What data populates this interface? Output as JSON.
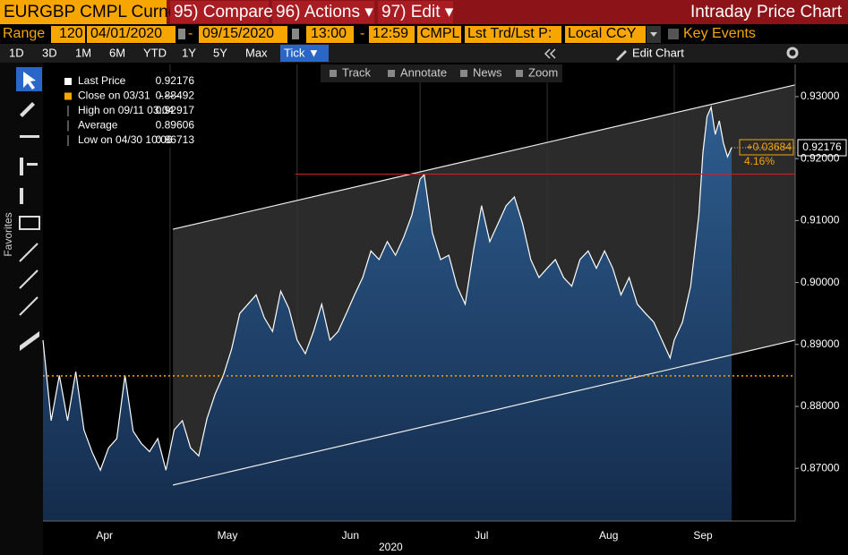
{
  "header": {
    "security": "EURGBP CMPL Curnc",
    "compare": "95) Compare",
    "actions": "96) Actions ▾",
    "edit": "97) Edit ▾",
    "title": "Intraday Price Chart"
  },
  "range_bar": {
    "range": "Range",
    "period": "120",
    "start_date": "04/01/2020",
    "dash1": "-",
    "end_date": "09/15/2020",
    "start_time": "13:00",
    "dash2": "-",
    "end_time": "12:59",
    "source": "CMPL",
    "field": "Lst Trd/Lst P:",
    "currency": "Local CCY",
    "key_events": "Key Events"
  },
  "periods": [
    "1D",
    "3D",
    "1M",
    "6M",
    "YTD",
    "1Y",
    "5Y",
    "Max"
  ],
  "frequency": "Tick ▼",
  "edit_chart": "Edit Chart",
  "chart_tools": [
    "Track",
    "Annotate",
    "News",
    "Zoom"
  ],
  "favorites": "Favorites",
  "legend": [
    {
      "label": "Last Price",
      "value": 0.92176
    },
    {
      "label": "Close on 03/31",
      "value": 0.88492
    },
    {
      "label": "High on 09/11 03:04",
      "value": 0.92917
    },
    {
      "label": "Average",
      "value": 0.89606
    },
    {
      "label": "Low on 04/30 10:06",
      "value": 0.86713
    }
  ],
  "chart_data": {
    "type": "line",
    "x": [
      0,
      2,
      4,
      6,
      8,
      10,
      12,
      14,
      16,
      18,
      20,
      22,
      24,
      26,
      28,
      30,
      32,
      34,
      36,
      38,
      40,
      42,
      44,
      46,
      48,
      50,
      52,
      54,
      56,
      58,
      60,
      62,
      64,
      66,
      68,
      70,
      72,
      74,
      76,
      78,
      80,
      82,
      84,
      86,
      88,
      90,
      92,
      93,
      95,
      97,
      99,
      101,
      103,
      105,
      107,
      109,
      111,
      113,
      115,
      117,
      119,
      121,
      123,
      125,
      127,
      129,
      131,
      133,
      135,
      137,
      139,
      141,
      143,
      145,
      147,
      149,
      151,
      153,
      154,
      156,
      158,
      159,
      160,
      161,
      162,
      163,
      164,
      165,
      166,
      167,
      168
    ],
    "series": [
      {
        "name": "Last Price",
        "color": "#ffffff",
        "values": [
          0.8907,
          0.8777,
          0.885,
          0.8777,
          0.8856,
          0.8762,
          0.8726,
          0.8697,
          0.8733,
          0.8748,
          0.885,
          0.876,
          0.874,
          0.8727,
          0.8748,
          0.8697,
          0.8762,
          0.8777,
          0.8733,
          0.872,
          0.878,
          0.882,
          0.885,
          0.8892,
          0.895,
          0.8965,
          0.898,
          0.8943,
          0.8921,
          0.8986,
          0.8958,
          0.8907,
          0.8885,
          0.8921,
          0.8965,
          0.8907,
          0.8921,
          0.895,
          0.898,
          0.9008,
          0.9051,
          0.9037,
          0.9066,
          0.9044,
          0.9073,
          0.9109,
          0.9167,
          0.9174,
          0.908,
          0.9037,
          0.9044,
          0.8994,
          0.8965,
          0.9051,
          0.9124,
          0.9066,
          0.9095,
          0.9124,
          0.9138,
          0.9095,
          0.9037,
          0.9008,
          0.9023,
          0.9037,
          0.9008,
          0.8994,
          0.9037,
          0.9051,
          0.9023,
          0.9051,
          0.9023,
          0.898,
          0.9008,
          0.8965,
          0.895,
          0.8936,
          0.8907,
          0.8878,
          0.8907,
          0.8936,
          0.8994,
          0.9051,
          0.9109,
          0.921,
          0.9268,
          0.9283,
          0.9239,
          0.9261,
          0.9225,
          0.9203,
          0.9218
        ]
      }
    ],
    "xlim": [
      0,
      183.5
    ],
    "ylim": [
      0.8615,
      0.9352
    ],
    "xticks": [
      {
        "value": 15,
        "label": "Apr"
      },
      {
        "value": 45,
        "label": "May"
      },
      {
        "value": 75,
        "label": "Jun"
      },
      {
        "value": 107,
        "label": "Jul"
      },
      {
        "value": 138,
        "label": "Aug"
      },
      {
        "value": 161,
        "label": "Sep"
      }
    ],
    "xgrid": [
      31,
      62,
      92,
      123,
      154
    ],
    "x_label": "2020",
    "yticks": [
      {
        "value": 0.87,
        "label": "0.87000"
      },
      {
        "value": 0.88,
        "label": "0.88000"
      },
      {
        "value": 0.89,
        "label": "0.89000"
      },
      {
        "value": 0.9,
        "label": "0.90000"
      },
      {
        "value": 0.91,
        "label": "0.91000"
      },
      {
        "value": 0.92,
        "label": "0.92000"
      },
      {
        "value": 0.93,
        "label": "0.93000"
      }
    ],
    "change_label": "+0.03684",
    "change_pct_label": "4.16%",
    "channel": {
      "upper": [
        [
          31.7,
          0.9086
        ],
        [
          183.5,
          0.9319
        ]
      ],
      "lower": [
        [
          31.7,
          0.8673
        ],
        [
          183.5,
          0.8907
        ]
      ]
    },
    "level_line": {
      "x": [
        61.6,
        183.5
      ],
      "value": 0.9175
    }
  }
}
